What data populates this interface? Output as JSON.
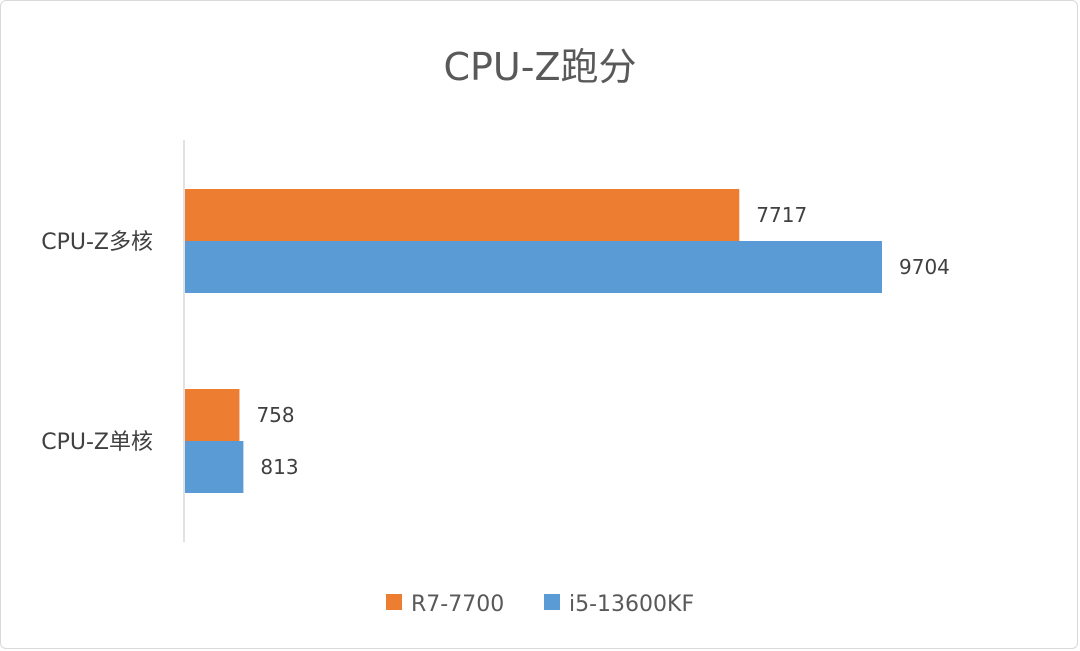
{
  "chart_data": {
    "type": "bar",
    "orientation": "horizontal",
    "title": "CPU-Z跑分",
    "categories": [
      "CPU-Z多核",
      "CPU-Z单核"
    ],
    "series": [
      {
        "name": "R7-7700",
        "values": [
          7717,
          758
        ],
        "color": "#ED7D31"
      },
      {
        "name": "i5-13600KF",
        "values": [
          9704,
          813
        ],
        "color": "#5B9BD5"
      }
    ],
    "xlim": [
      0,
      12000
    ],
    "grid": false,
    "legend": "bottom",
    "data_labels": true
  }
}
